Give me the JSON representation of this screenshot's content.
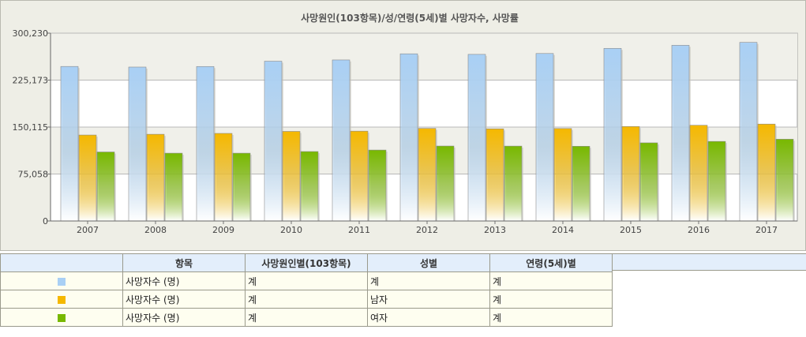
{
  "chart_data": {
    "type": "bar",
    "title": "사망원인(103항목)/성/연령(5세)별 사망자수, 사망률",
    "xlabel": "",
    "ylabel": "",
    "ylim": [
      0,
      300230
    ],
    "yticks": [
      0,
      75058,
      150115,
      225173,
      300230
    ],
    "ytick_labels": [
      "0",
      "75,058",
      "150,115",
      "225,173",
      "300,230"
    ],
    "categories": [
      "2007",
      "2008",
      "2009",
      "2010",
      "2011",
      "2012",
      "2013",
      "2014",
      "2015",
      "2016",
      "2017"
    ],
    "grid": true,
    "legend": "below-table",
    "series": [
      {
        "color": "#a9d0f5",
        "values": [
          247000,
          246000,
          246900,
          255400,
          257400,
          267200,
          266300,
          267700,
          275900,
          280800,
          285500
        ]
      },
      {
        "color": "#f5b800",
        "values": [
          137400,
          138600,
          140000,
          143200,
          143600,
          148000,
          147300,
          147800,
          151000,
          153000,
          154900
        ]
      },
      {
        "color": "#78b800",
        "values": [
          110300,
          108400,
          108400,
          111000,
          113400,
          119800,
          119700,
          119400,
          124900,
          127200,
          130700
        ]
      }
    ]
  },
  "legend_table": {
    "headers": [
      "항목",
      "사망원인별(103항목)",
      "성별",
      "연령(5세)별"
    ],
    "rows": [
      {
        "color": "#a9d0f5",
        "cells": [
          "사망자수 (명)",
          "계",
          "계",
          "계"
        ]
      },
      {
        "color": "#f5b800",
        "cells": [
          "사망자수 (명)",
          "계",
          "남자",
          "계"
        ]
      },
      {
        "color": "#78b800",
        "cells": [
          "사망자수 (명)",
          "계",
          "여자",
          "계"
        ]
      }
    ]
  }
}
